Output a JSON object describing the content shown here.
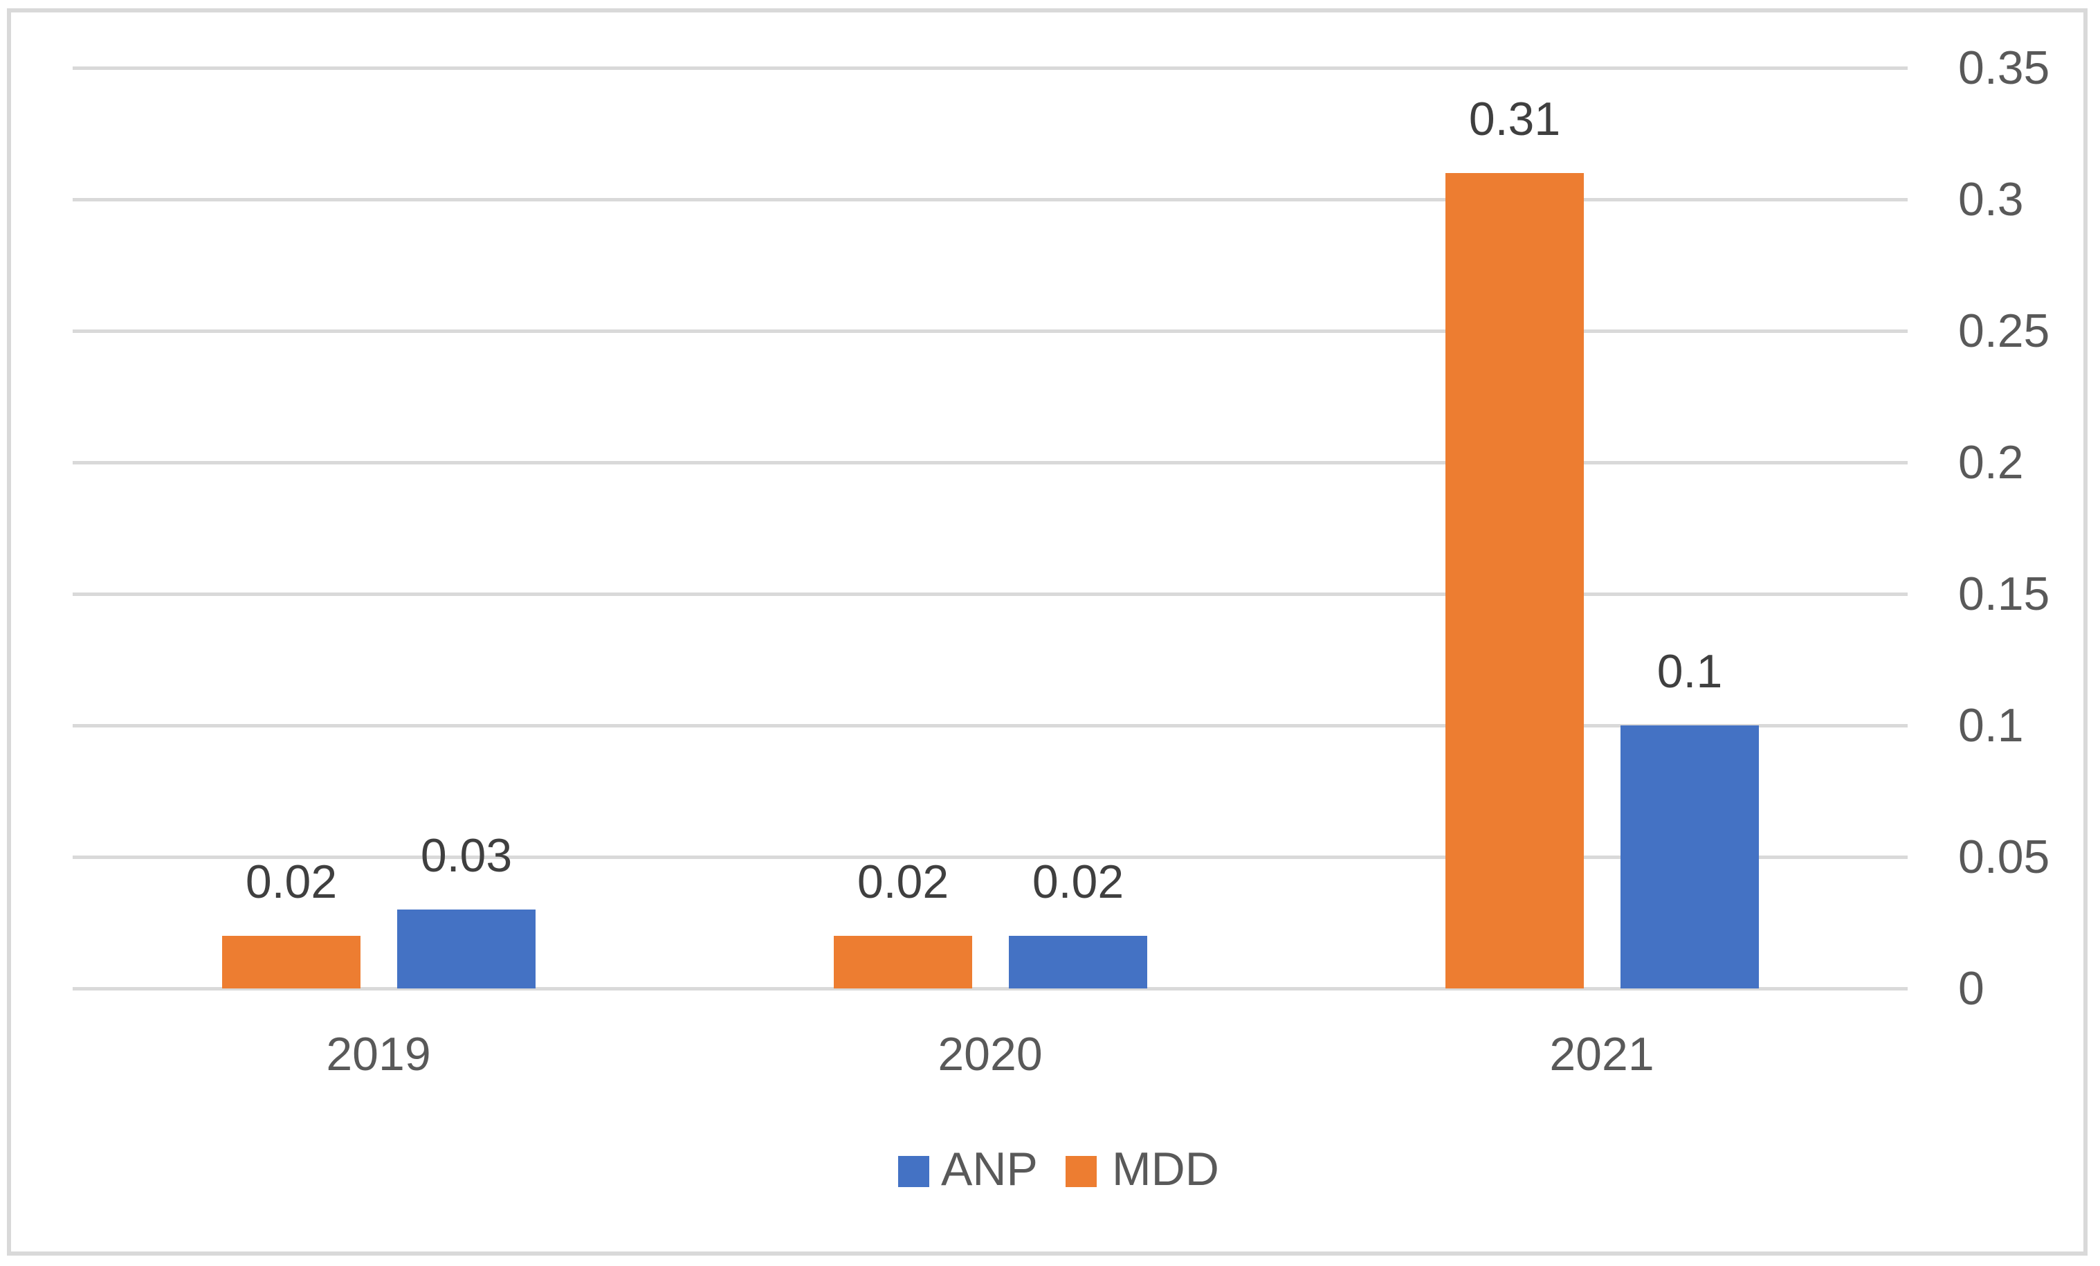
{
  "chart_data": {
    "type": "bar",
    "title": "",
    "categories": [
      "2019",
      "2020",
      "2021"
    ],
    "series": [
      {
        "name": "MDD",
        "color": "#ED7D31",
        "values": [
          0.02,
          0.02,
          0.31
        ],
        "labels": [
          "0.02",
          "0.02",
          "0.31"
        ]
      },
      {
        "name": "ANP",
        "color": "#4472C4",
        "values": [
          0.03,
          0.02,
          0.1
        ],
        "labels": [
          "0.03",
          "0.02",
          "0.1"
        ]
      }
    ],
    "xlabel": "",
    "ylabel": "",
    "ylim": [
      0,
      0.35
    ],
    "y_axis": {
      "side": "right",
      "tick_values": [
        0,
        0.05,
        0.1,
        0.15,
        0.2,
        0.25,
        0.3,
        0.35
      ],
      "tick_labels": [
        "0",
        "0.05",
        "0.1",
        "0.15",
        "0.2",
        "0.25",
        "0.3",
        "0.35"
      ]
    },
    "grid": true,
    "legend": {
      "position": "bottom",
      "entries": [
        {
          "label": "ANP",
          "color": "#4472C4"
        },
        {
          "label": "MDD",
          "color": "#ED7D31"
        }
      ]
    },
    "colors": {
      "gridline": "#D9D9D9",
      "frame_border": "#D9D9D9",
      "axis_text": "#595959",
      "data_label_text": "#3F3F3F",
      "background": "#FFFFFF"
    }
  }
}
